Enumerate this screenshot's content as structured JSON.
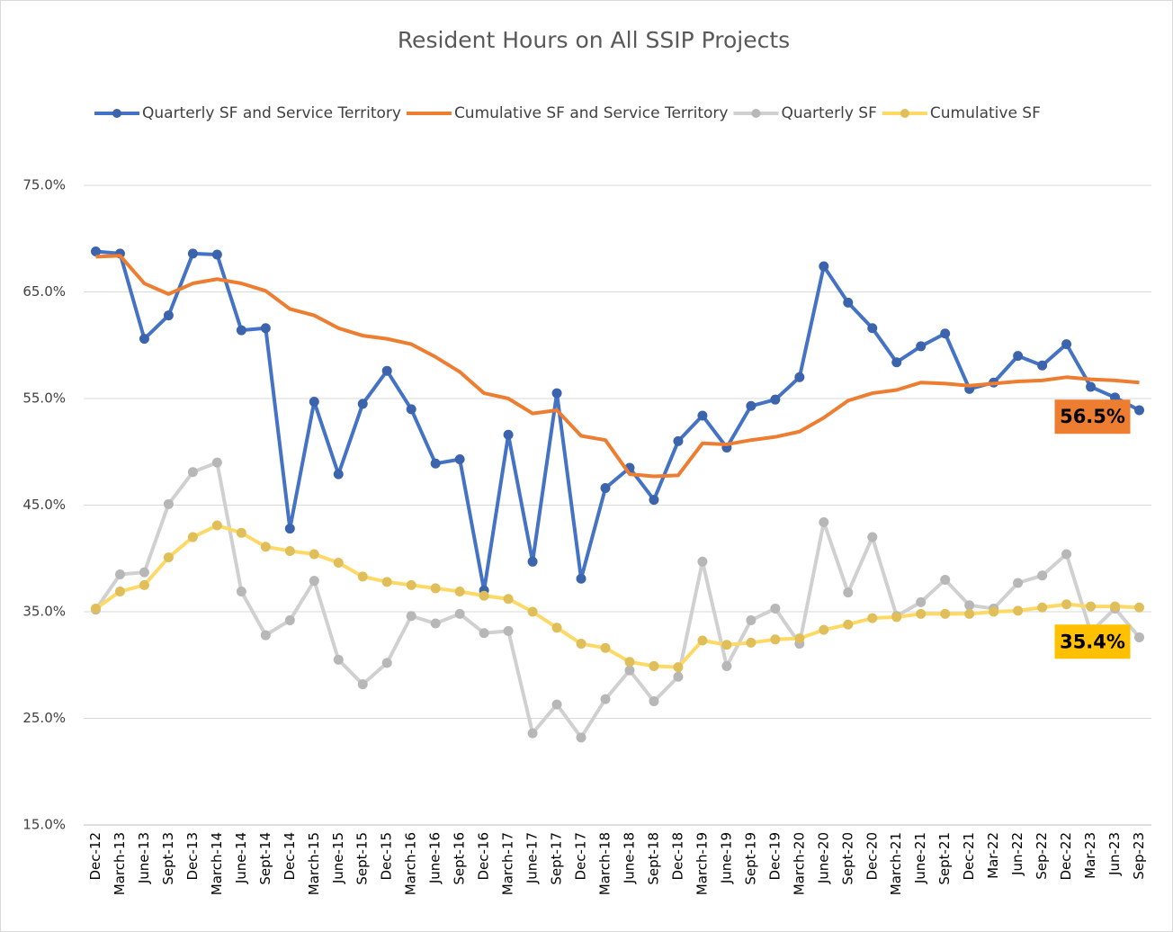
{
  "chart_data": {
    "type": "line",
    "title": "Resident Hours on All SSIP Projects",
    "categories": [
      "Dec-12",
      "March-13",
      "June-13",
      "Sept-13",
      "Dec-13",
      "March-14",
      "June-14",
      "Sept-14",
      "Dec-14",
      "March-15",
      "June-15",
      "Sept-15",
      "Dec-15",
      "March-16",
      "June-16",
      "Sept-16",
      "Dec-16",
      "March-17",
      "June-17",
      "Sept-17",
      "Dec-17",
      "March-18",
      "June-18",
      "Sept-18",
      "Dec-18",
      "March-19",
      "June-19",
      "Sept-19",
      "Dec-19",
      "March-20",
      "June-20",
      "Sept-20",
      "Dec-20",
      "March-21",
      "June-21",
      "Sept-21",
      "Dec-21",
      "Mar-22",
      "Jun-22",
      "Sep-22",
      "Dec-22",
      "Mar-23",
      "Jun-23",
      "Sep-23"
    ],
    "series": [
      {
        "name": "Quarterly SF and Service Territory",
        "color": "#4472c4",
        "markers": true,
        "values": [
          68.8,
          68.6,
          60.6,
          62.8,
          68.6,
          68.5,
          61.4,
          61.6,
          42.8,
          54.7,
          47.9,
          54.5,
          57.6,
          54.0,
          48.9,
          49.3,
          37.0,
          51.6,
          39.7,
          55.5,
          38.1,
          46.6,
          48.5,
          45.5,
          51.0,
          53.4,
          50.4,
          54.3,
          54.9,
          57.0,
          67.4,
          64.0,
          61.6,
          58.4,
          59.9,
          61.1,
          55.9,
          56.5,
          59.0,
          58.1,
          60.1,
          56.1,
          55.1,
          53.9
        ]
      },
      {
        "name": "Cumulative SF and Service Territory",
        "color": "#ed7d31",
        "markers": false,
        "values": [
          68.3,
          68.4,
          65.8,
          64.8,
          65.8,
          66.2,
          65.8,
          65.1,
          63.4,
          62.8,
          61.6,
          60.9,
          60.6,
          60.1,
          58.9,
          57.5,
          55.5,
          55.0,
          53.6,
          53.9,
          51.5,
          51.1,
          47.9,
          47.7,
          47.8,
          50.8,
          50.7,
          51.1,
          51.4,
          51.9,
          53.2,
          54.8,
          55.5,
          55.8,
          56.5,
          56.4,
          56.2,
          56.4,
          56.6,
          56.7,
          57.0,
          56.8,
          56.7,
          56.5
        ]
      },
      {
        "name": "Quarterly SF",
        "color": "#d0d0d0",
        "markers": true,
        "values": [
          35.2,
          38.5,
          38.7,
          45.1,
          48.1,
          49.0,
          36.9,
          32.8,
          34.2,
          37.9,
          30.5,
          28.2,
          30.2,
          34.6,
          33.9,
          34.8,
          33.0,
          33.2,
          23.6,
          26.3,
          23.2,
          26.8,
          29.5,
          26.6,
          28.9,
          39.7,
          29.9,
          34.2,
          35.3,
          32.0,
          43.4,
          36.8,
          42.0,
          34.6,
          35.9,
          38.0,
          35.6,
          35.3,
          37.7,
          38.4,
          40.4,
          33.1,
          35.3,
          32.6
        ]
      },
      {
        "name": "Cumulative SF",
        "color": "#ffd966",
        "markers": true,
        "values": [
          35.3,
          36.9,
          37.5,
          40.1,
          42.0,
          43.1,
          42.4,
          41.1,
          40.7,
          40.4,
          39.6,
          38.3,
          37.8,
          37.5,
          37.2,
          36.9,
          36.5,
          36.2,
          35.0,
          33.5,
          32.0,
          31.6,
          30.3,
          29.9,
          29.8,
          32.3,
          31.9,
          32.1,
          32.4,
          32.5,
          33.3,
          33.8,
          34.4,
          34.5,
          34.8,
          34.8,
          34.8,
          35.0,
          35.1,
          35.4,
          35.7,
          35.5,
          35.5,
          35.4
        ]
      }
    ],
    "annotations": [
      {
        "label": "56.5%",
        "value": 56.5,
        "color": "#ed7d31"
      },
      {
        "label": "35.4%",
        "value": 35.4,
        "color": "#ffc000"
      }
    ],
    "ylim": [
      15,
      75
    ],
    "yticks": [
      {
        "value": 15,
        "label": "15.0%"
      },
      {
        "value": 25,
        "label": "25.0%"
      },
      {
        "value": 35,
        "label": "35.0%"
      },
      {
        "value": 45,
        "label": "45.0%"
      },
      {
        "value": 55,
        "label": "55.0%"
      },
      {
        "value": 65,
        "label": "65.0%"
      },
      {
        "value": 75,
        "label": "75.0%"
      }
    ],
    "grid": true
  }
}
